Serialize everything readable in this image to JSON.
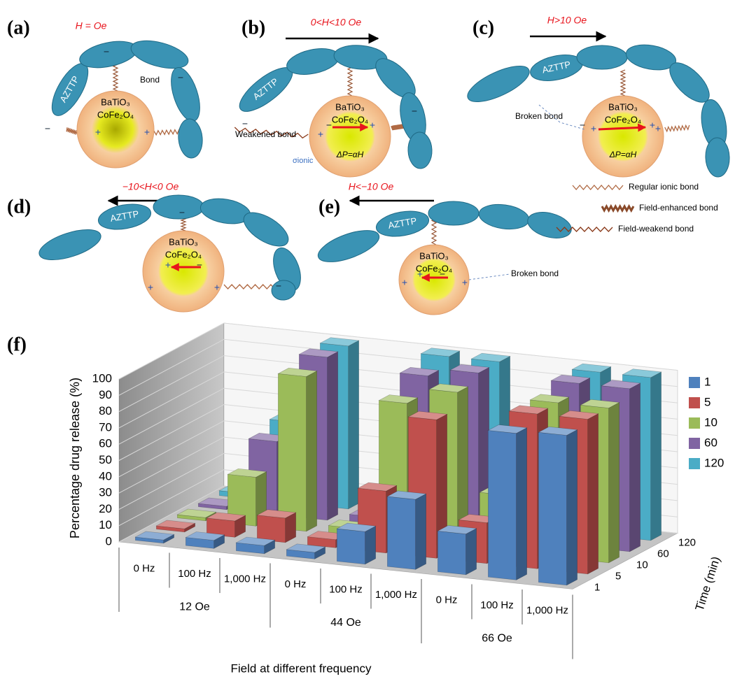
{
  "panels": [
    {
      "label": "(a)",
      "field": "H = Oe",
      "chain": "AZTTP",
      "core": [
        "BaTiO₃",
        "CoFe₂O₄"
      ],
      "notes": [
        "Bond"
      ]
    },
    {
      "label": "(b)",
      "field": "0<H<10 Oe",
      "chain": "AZTTP",
      "core": [
        "BaTiO₃",
        "CoFe₂O₄",
        "ΔP=αH"
      ],
      "notes": [
        "Weakened bond",
        "σionic"
      ]
    },
    {
      "label": "(c)",
      "field": "H>10 Oe",
      "chain": "AZTTP",
      "core": [
        "BaTiO₃",
        "CoFe₂O₄",
        "ΔP=αH"
      ],
      "notes": [
        "Broken bond"
      ]
    },
    {
      "label": "(d)",
      "field": "−10<H<0 Oe",
      "chain": "AZTTP",
      "core": [
        "BaTiO₃",
        "CoFe₂O₄"
      ],
      "notes": []
    },
    {
      "label": "(e)",
      "field": "H<−10 Oe",
      "chain": "AZTTP",
      "core": [
        "BaTiO₃",
        "CoFe₂O₄"
      ],
      "notes": [
        "Broken bond"
      ]
    }
  ],
  "charges": [
    "−",
    "+"
  ],
  "bond_legend": [
    "Regular ionic bond",
    "Field-enhanced bond",
    "Field-weakend bond"
  ],
  "chart_label": "(f)",
  "chart_data": {
    "type": "bar",
    "y_label": "Percentage drug release (%)",
    "x_label": "Field at different frequency",
    "z_label": "Time (min)",
    "categories": [
      "0 Hz",
      "100 Hz",
      "1,000 Hz",
      "0 Hz",
      "100 Hz",
      "1,000 Hz",
      "0 Hz",
      "100 Hz",
      "1,000 Hz"
    ],
    "groups": [
      "12 Oe",
      "44 Oe",
      "66 Oe"
    ],
    "series": [
      {
        "name": "1",
        "color": "#4f81bd",
        "values": [
          2,
          5,
          5,
          4,
          20,
          43,
          25,
          90,
          92
        ]
      },
      {
        "name": "5",
        "color": "#c0504d",
        "values": [
          2,
          10,
          15,
          5,
          38,
          85,
          25,
          95,
          95
        ]
      },
      {
        "name": "10",
        "color": "#9bbb59",
        "values": [
          2,
          30,
          95,
          5,
          85,
          95,
          35,
          95,
          95
        ]
      },
      {
        "name": "60",
        "color": "#8064a2",
        "values": [
          2,
          45,
          100,
          5,
          95,
          100,
          40,
          100,
          100
        ]
      },
      {
        "name": "120",
        "color": "#4bacc6",
        "values": [
          3,
          50,
          100,
          3,
          100,
          100,
          50,
          100,
          100
        ]
      }
    ],
    "ylim": [
      0,
      100
    ],
    "yticks": [
      0,
      10,
      20,
      30,
      40,
      50,
      60,
      70,
      80,
      90,
      100
    ],
    "grid": true,
    "legend": "right"
  }
}
